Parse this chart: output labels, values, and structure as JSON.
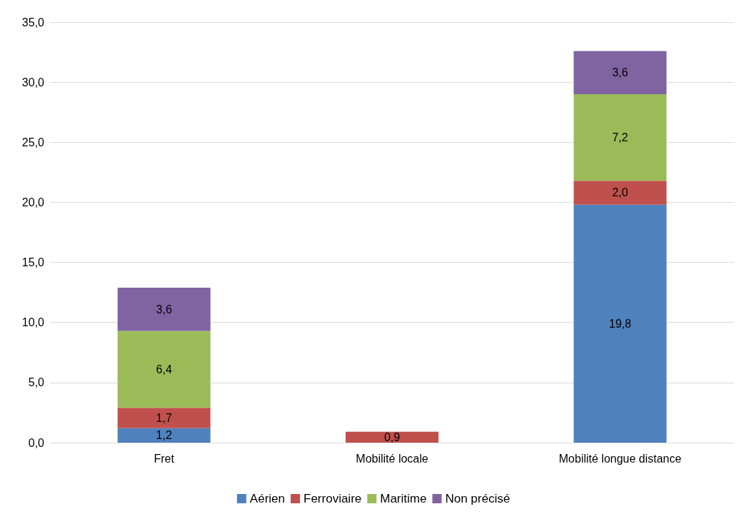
{
  "chart_data": {
    "type": "bar",
    "stacked": true,
    "categories": [
      "Fret",
      "Mobilité locale",
      "Mobilité longue distance"
    ],
    "series": [
      {
        "name": "Aérien",
        "color": "#4f81bd",
        "values": [
          1.2,
          null,
          19.8
        ],
        "value_labels": [
          "1,2",
          null,
          "19,8"
        ]
      },
      {
        "name": "Ferroviaire",
        "color": "#c0504d",
        "values": [
          1.7,
          0.9,
          2.0
        ],
        "value_labels": [
          "1,7",
          "0,9",
          "2,0"
        ]
      },
      {
        "name": "Maritime",
        "color": "#9bbb59",
        "values": [
          6.4,
          null,
          7.2
        ],
        "value_labels": [
          "6,4",
          null,
          "7,2"
        ]
      },
      {
        "name": "Non précisé",
        "color": "#8064a2",
        "values": [
          3.6,
          null,
          3.6
        ],
        "value_labels": [
          "3,6",
          null,
          "3,6"
        ]
      }
    ],
    "ylim": [
      0,
      35
    ],
    "yticks": [
      {
        "value": 0,
        "label": "0,0"
      },
      {
        "value": 5,
        "label": "5,0"
      },
      {
        "value": 10,
        "label": "10,0"
      },
      {
        "value": 15,
        "label": "15,0"
      },
      {
        "value": 20,
        "label": "20,0"
      },
      {
        "value": 25,
        "label": "25,0"
      },
      {
        "value": 30,
        "label": "30,0"
      },
      {
        "value": 35,
        "label": "35,0"
      }
    ],
    "grid": "y",
    "legend": "bottom"
  }
}
